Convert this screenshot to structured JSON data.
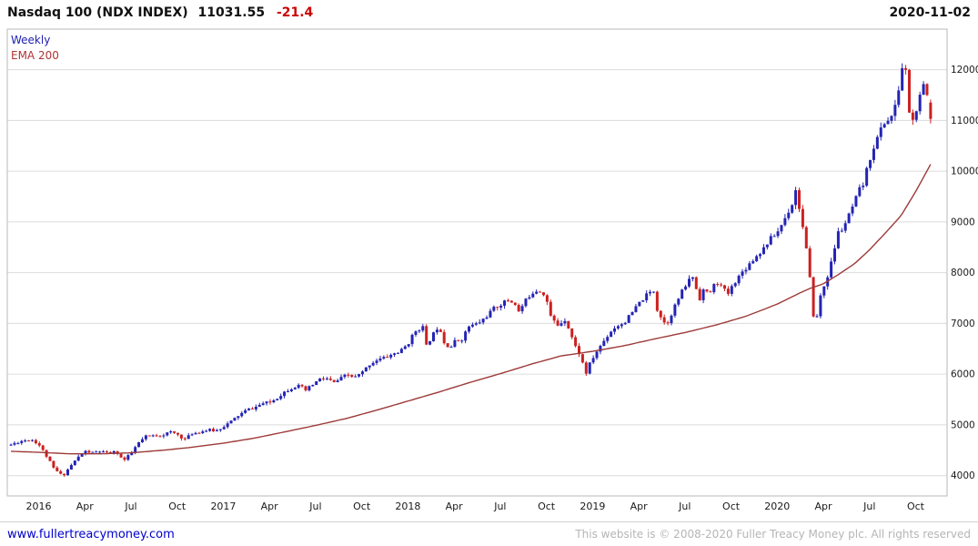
{
  "header": {
    "title": "Nasdaq 100 (NDX INDEX)",
    "price": "11031.55",
    "change": "-21.4",
    "date": "2020-11-02"
  },
  "legend": {
    "weekly": "Weekly",
    "ema": "EMA 200"
  },
  "footer": {
    "link": "www.fullertreacymoney.com",
    "copyright": "This website is © 2008-2020 Fuller Treacy Money plc. All rights reserved"
  },
  "colors": {
    "up": "#2424b4",
    "down": "#cc2020",
    "ema": "#9c3a38",
    "grid": "#dcdcdc",
    "border": "#b8b8b8",
    "axis_text": "#1a1a1a",
    "negative": "#cc0000",
    "link": "#0000cc",
    "legend_weekly": "#2020b0",
    "legend_ema": "#b03434",
    "copyright": "#b5b5b5"
  },
  "chart_data": {
    "type": "candlestick",
    "title": "Nasdaq 100 (NDX INDEX)",
    "interval": "weekly",
    "overlay": "EMA 200",
    "last_close": 11031.55,
    "last_change": -21.4,
    "as_of": "2020-11-02",
    "ylim": [
      3600,
      12800
    ],
    "xlim": [
      2015.83,
      2020.92
    ],
    "y_ticks": [
      4000,
      5000,
      6000,
      7000,
      8000,
      9000,
      10000,
      11000,
      12000
    ],
    "x_ticks": [
      [
        "2016",
        2016.0
      ],
      [
        "Apr",
        2016.25
      ],
      [
        "Jul",
        2016.5
      ],
      [
        "Oct",
        2016.75
      ],
      [
        "2017",
        2017.0
      ],
      [
        "Apr",
        2017.25
      ],
      [
        "Jul",
        2017.5
      ],
      [
        "Oct",
        2017.75
      ],
      [
        "2018",
        2018.0
      ],
      [
        "Apr",
        2018.25
      ],
      [
        "Jul",
        2018.5
      ],
      [
        "Oct",
        2018.75
      ],
      [
        "2019",
        2019.0
      ],
      [
        "Apr",
        2019.25
      ],
      [
        "Jul",
        2019.5
      ],
      [
        "Oct",
        2019.75
      ],
      [
        "2020",
        2020.0
      ],
      [
        "Apr",
        2020.25
      ],
      [
        "Jul",
        2020.5
      ],
      [
        "Oct",
        2020.75
      ]
    ],
    "price_anchors": [
      [
        2015.85,
        4610
      ],
      [
        2015.9,
        4680
      ],
      [
        2015.96,
        4720
      ],
      [
        2016.0,
        4620
      ],
      [
        2016.04,
        4400
      ],
      [
        2016.08,
        4150
      ],
      [
        2016.11,
        4050
      ],
      [
        2016.13,
        3990
      ],
      [
        2016.17,
        4180
      ],
      [
        2016.21,
        4350
      ],
      [
        2016.25,
        4480
      ],
      [
        2016.29,
        4450
      ],
      [
        2016.33,
        4480
      ],
      [
        2016.38,
        4430
      ],
      [
        2016.42,
        4480
      ],
      [
        2016.46,
        4290
      ],
      [
        2016.5,
        4440
      ],
      [
        2016.54,
        4640
      ],
      [
        2016.58,
        4770
      ],
      [
        2016.63,
        4790
      ],
      [
        2016.67,
        4800
      ],
      [
        2016.71,
        4860
      ],
      [
        2016.75,
        4820
      ],
      [
        2016.79,
        4710
      ],
      [
        2016.83,
        4830
      ],
      [
        2016.88,
        4870
      ],
      [
        2016.92,
        4900
      ],
      [
        2016.96,
        4880
      ],
      [
        2017.0,
        4970
      ],
      [
        2017.04,
        5060
      ],
      [
        2017.08,
        5180
      ],
      [
        2017.13,
        5300
      ],
      [
        2017.17,
        5340
      ],
      [
        2017.21,
        5420
      ],
      [
        2017.25,
        5440
      ],
      [
        2017.29,
        5530
      ],
      [
        2017.33,
        5650
      ],
      [
        2017.38,
        5750
      ],
      [
        2017.42,
        5770
      ],
      [
        2017.44,
        5660
      ],
      [
        2017.48,
        5780
      ],
      [
        2017.52,
        5900
      ],
      [
        2017.56,
        5910
      ],
      [
        2017.6,
        5830
      ],
      [
        2017.63,
        5900
      ],
      [
        2017.67,
        5990
      ],
      [
        2017.71,
        5930
      ],
      [
        2017.75,
        6020
      ],
      [
        2017.79,
        6190
      ],
      [
        2017.83,
        6280
      ],
      [
        2017.88,
        6330
      ],
      [
        2017.92,
        6400
      ],
      [
        2017.96,
        6450
      ],
      [
        2018.0,
        6600
      ],
      [
        2018.04,
        6850
      ],
      [
        2018.08,
        6940
      ],
      [
        2018.1,
        6550
      ],
      [
        2018.13,
        6750
      ],
      [
        2018.17,
        6980
      ],
      [
        2018.19,
        6650
      ],
      [
        2018.23,
        6520
      ],
      [
        2018.25,
        6640
      ],
      [
        2018.29,
        6680
      ],
      [
        2018.33,
        6940
      ],
      [
        2018.38,
        7000
      ],
      [
        2018.42,
        7120
      ],
      [
        2018.46,
        7280
      ],
      [
        2018.5,
        7370
      ],
      [
        2018.54,
        7460
      ],
      [
        2018.58,
        7390
      ],
      [
        2018.6,
        7230
      ],
      [
        2018.65,
        7520
      ],
      [
        2018.69,
        7660
      ],
      [
        2018.73,
        7620
      ],
      [
        2018.75,
        7490
      ],
      [
        2018.77,
        7150
      ],
      [
        2018.81,
        6960
      ],
      [
        2018.85,
        7080
      ],
      [
        2018.88,
        6830
      ],
      [
        2018.9,
        6590
      ],
      [
        2018.94,
        6330
      ],
      [
        2018.96,
        5970
      ],
      [
        2018.98,
        6170
      ],
      [
        2019.02,
        6430
      ],
      [
        2019.06,
        6650
      ],
      [
        2019.1,
        6850
      ],
      [
        2019.13,
        6950
      ],
      [
        2019.17,
        7010
      ],
      [
        2019.21,
        7190
      ],
      [
        2019.25,
        7390
      ],
      [
        2019.29,
        7550
      ],
      [
        2019.33,
        7660
      ],
      [
        2019.35,
        7280
      ],
      [
        2019.38,
        7060
      ],
      [
        2019.4,
        6970
      ],
      [
        2019.44,
        7300
      ],
      [
        2019.48,
        7600
      ],
      [
        2019.52,
        7840
      ],
      [
        2019.54,
        7950
      ],
      [
        2019.56,
        7700
      ],
      [
        2019.58,
        7490
      ],
      [
        2019.6,
        7660
      ],
      [
        2019.63,
        7570
      ],
      [
        2019.67,
        7830
      ],
      [
        2019.71,
        7680
      ],
      [
        2019.73,
        7560
      ],
      [
        2019.77,
        7820
      ],
      [
        2019.81,
        8010
      ],
      [
        2019.85,
        8180
      ],
      [
        2019.88,
        8300
      ],
      [
        2019.92,
        8450
      ],
      [
        2019.96,
        8660
      ],
      [
        2020.0,
        8790
      ],
      [
        2020.04,
        9060
      ],
      [
        2020.08,
        9350
      ],
      [
        2020.1,
        9620
      ],
      [
        2020.13,
        9100
      ],
      [
        2020.15,
        8600
      ],
      [
        2020.17,
        8200
      ],
      [
        2020.19,
        7250
      ],
      [
        2020.21,
        6990
      ],
      [
        2020.23,
        7500
      ],
      [
        2020.25,
        7700
      ],
      [
        2020.27,
        7900
      ],
      [
        2020.29,
        8150
      ],
      [
        2020.33,
        8790
      ],
      [
        2020.35,
        8850
      ],
      [
        2020.38,
        9050
      ],
      [
        2020.4,
        9230
      ],
      [
        2020.42,
        9380
      ],
      [
        2020.44,
        9620
      ],
      [
        2020.46,
        9660
      ],
      [
        2020.48,
        9950
      ],
      [
        2020.5,
        10220
      ],
      [
        2020.52,
        10460
      ],
      [
        2020.54,
        10620
      ],
      [
        2020.56,
        10830
      ],
      [
        2020.58,
        10950
      ],
      [
        2020.6,
        11010
      ],
      [
        2020.63,
        11130
      ],
      [
        2020.65,
        11440
      ],
      [
        2020.67,
        11900
      ],
      [
        2020.688,
        12250
      ],
      [
        2020.7,
        11830
      ],
      [
        2020.71,
        11270
      ],
      [
        2020.73,
        10940
      ],
      [
        2020.75,
        11150
      ],
      [
        2020.77,
        11420
      ],
      [
        2020.79,
        11660
      ],
      [
        2020.8,
        11690
      ],
      [
        2020.815,
        11440
      ],
      [
        2020.83,
        11120
      ],
      [
        2020.845,
        11031.55
      ]
    ],
    "ema_anchors": [
      [
        2015.85,
        4480
      ],
      [
        2016.0,
        4460
      ],
      [
        2016.17,
        4430
      ],
      [
        2016.33,
        4430
      ],
      [
        2016.5,
        4450
      ],
      [
        2016.67,
        4500
      ],
      [
        2016.83,
        4560
      ],
      [
        2017.0,
        4640
      ],
      [
        2017.17,
        4740
      ],
      [
        2017.33,
        4860
      ],
      [
        2017.5,
        4990
      ],
      [
        2017.67,
        5130
      ],
      [
        2017.83,
        5290
      ],
      [
        2018.0,
        5470
      ],
      [
        2018.17,
        5650
      ],
      [
        2018.33,
        5830
      ],
      [
        2018.5,
        6010
      ],
      [
        2018.67,
        6200
      ],
      [
        2018.83,
        6360
      ],
      [
        2019.0,
        6450
      ],
      [
        2019.17,
        6560
      ],
      [
        2019.33,
        6690
      ],
      [
        2019.5,
        6820
      ],
      [
        2019.67,
        6970
      ],
      [
        2019.83,
        7140
      ],
      [
        2020.0,
        7380
      ],
      [
        2020.1,
        7560
      ],
      [
        2020.17,
        7680
      ],
      [
        2020.25,
        7780
      ],
      [
        2020.33,
        7960
      ],
      [
        2020.42,
        8180
      ],
      [
        2020.5,
        8450
      ],
      [
        2020.58,
        8760
      ],
      [
        2020.67,
        9120
      ],
      [
        2020.75,
        9600
      ],
      [
        2020.845,
        10230
      ]
    ]
  }
}
